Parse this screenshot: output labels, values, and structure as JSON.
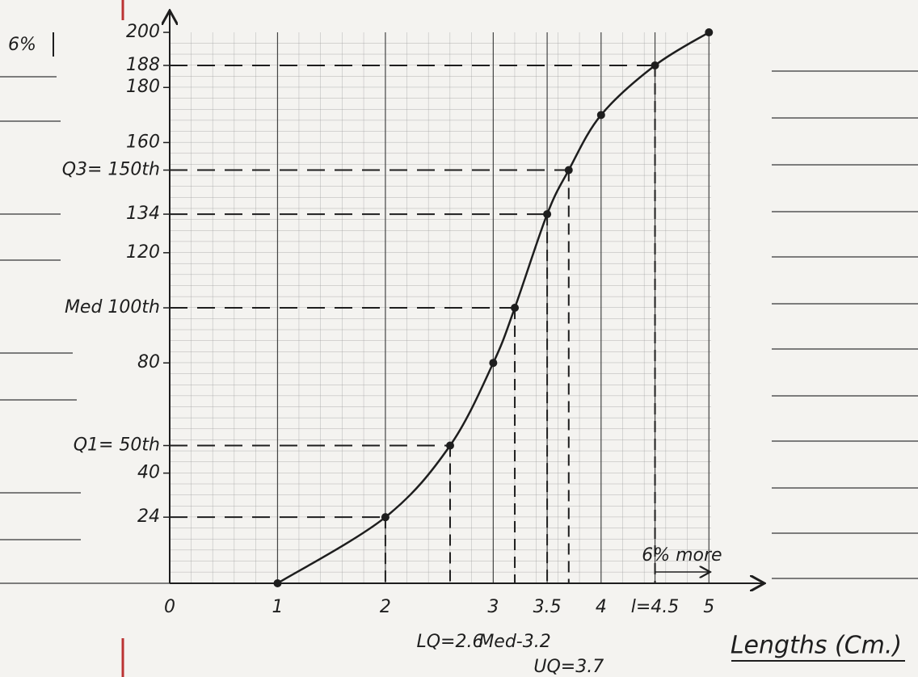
{
  "chart_data": {
    "type": "line",
    "x_label": "Lengths (Cm.)",
    "x": [
      1,
      2,
      2.6,
      3,
      3.2,
      3.5,
      3.7,
      4,
      4.5,
      5
    ],
    "y": [
      0,
      24,
      50,
      80,
      100,
      134,
      150,
      170,
      188,
      200
    ],
    "color": "#1e1e1e",
    "xlim": [
      0,
      5.5
    ],
    "ylim": [
      0,
      205
    ],
    "xticks": [
      0,
      1,
      2,
      3,
      3.5,
      4,
      {
        "value": 4.5,
        "label": "l=4.5"
      },
      5
    ],
    "yticks": [
      24,
      40,
      {
        "value": 50,
        "label": "Q1= 50th"
      },
      80,
      {
        "value": 100,
        "label": "Med 100th"
      },
      120,
      134,
      {
        "value": 150,
        "label": "Q3= 150th"
      },
      160,
      180,
      188,
      200
    ],
    "guides": [
      {
        "x": 2,
        "y": 24
      },
      {
        "x": 2.6,
        "y": 50,
        "label": "LQ=2.6"
      },
      {
        "x": 3.2,
        "y": 100,
        "label": "Med-3.2"
      },
      {
        "x": 3.5,
        "y": 134
      },
      {
        "x": 3.7,
        "y": 150,
        "label": "UQ=3.7"
      },
      {
        "x": 4.5,
        "y": 188
      }
    ],
    "annotations": [
      "6%",
      "6% more"
    ]
  }
}
